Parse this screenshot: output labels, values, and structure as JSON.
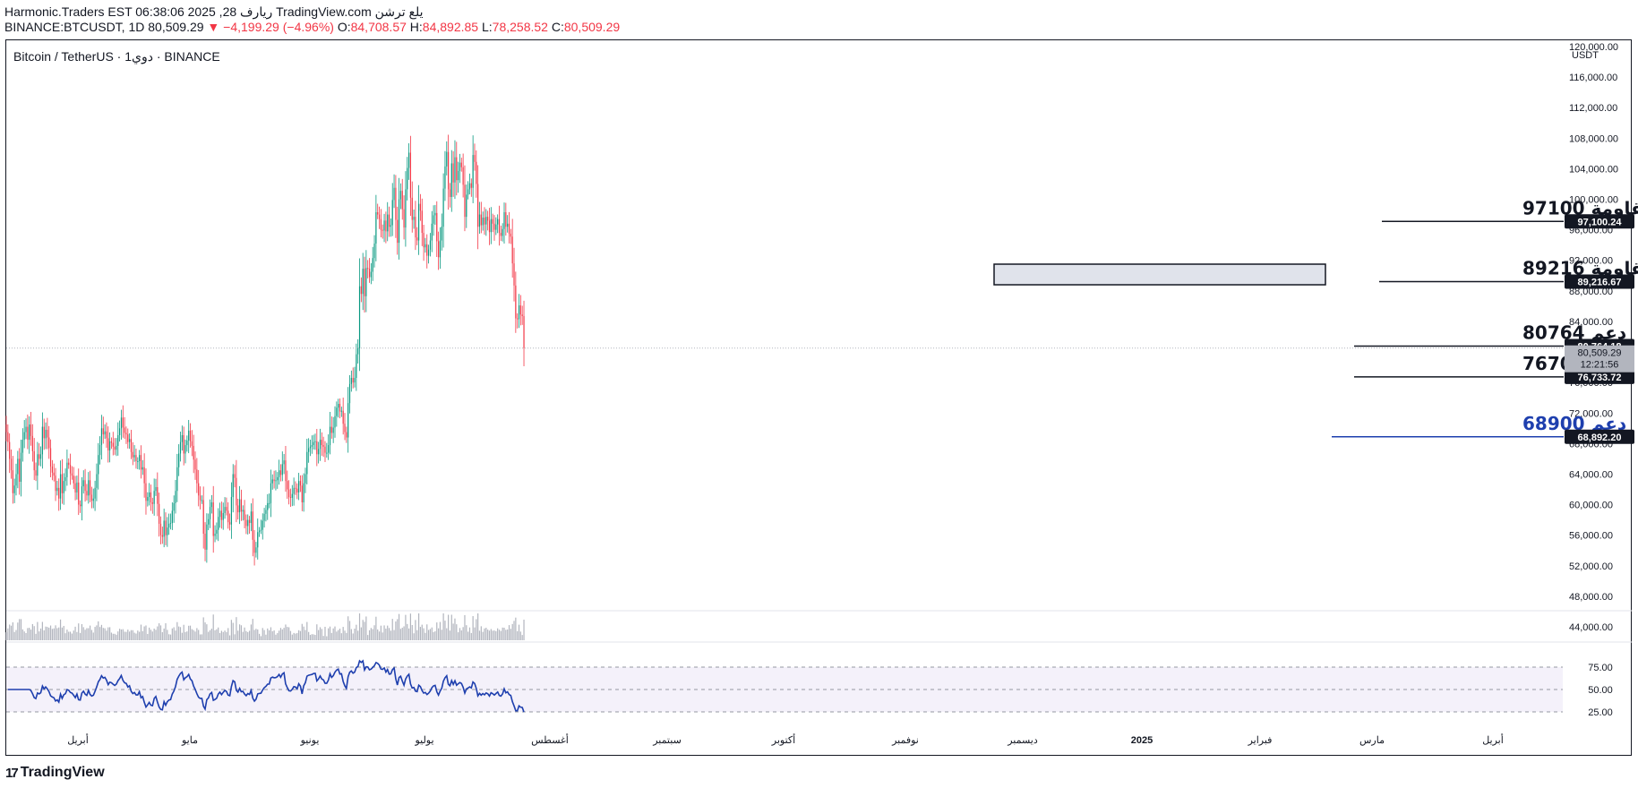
{
  "header": {
    "line1": "Harmonic.Traders EST 06:38:06 2025 ,28 ريارف TradingView.com يلع ترشن",
    "symbol_line": "BINANCE:BTCUSDT, 1D 80,509.29",
    "change": "▼ −4,199.29 (−4.96%)",
    "o_label": "O:",
    "o_value": "84,708.57",
    "h_label": "H:",
    "h_value": "84,892.85",
    "l_label": "L:",
    "l_value": "78,258.52",
    "c_label": "C:",
    "c_value": "80,509.29"
  },
  "chart_title": "Bitcoin / TetherUS · 1دوي · BINANCE",
  "price_unit": "USDT",
  "footer_logo": "TradingView",
  "colors": {
    "up": "#089981",
    "down": "#f23645",
    "rsi": "#1e3fae",
    "annotation": "#131722",
    "annotation_blue": "#1e3fae"
  },
  "chart_data": [
    {
      "type": "candlestick",
      "title": "Bitcoin / TetherUS",
      "ylim": [
        44000,
        120000
      ],
      "y_ticks": [
        44000,
        48000,
        52000,
        56000,
        60000,
        64000,
        68000,
        72000,
        76000,
        80000,
        84000,
        88000,
        92000,
        96000,
        100000,
        104000,
        108000,
        112000,
        116000,
        120000
      ],
      "y_tick_labels": [
        "44,000.00",
        "48,000.00",
        "52,000.00",
        "56,000.00",
        "60,000.00",
        "64,000.00",
        "68,000.00",
        "72,000.00",
        "76,000.00",
        "80,000.00",
        "84,000.00",
        "88,000.00",
        "92,000.00",
        "96,000.00",
        "100,000.00",
        "104,000.00",
        "108,000.00",
        "112,000.00",
        "116,000.00",
        "120,000.00"
      ],
      "x_labels": [
        "أبريل",
        "مايو",
        "يونيو",
        "يوليو",
        "أغسطس",
        "سبتمبر",
        "أكتوبر",
        "نوفمبر",
        "ديسمبر",
        "2025",
        "فبراير",
        "مارس",
        "أبريل"
      ],
      "x_label_bold": "2025",
      "series_closes": [
        69500,
        68200,
        66000,
        64500,
        61500,
        62500,
        64000,
        66000,
        63000,
        66800,
        68500,
        69500,
        70200,
        68500,
        70500,
        69000,
        67000,
        64500,
        63800,
        66600,
        66000,
        66600,
        70200,
        68700,
        69800,
        68800,
        67400,
        65000,
        64200,
        63800,
        61800,
        62200,
        60800,
        64000,
        61500,
        63100,
        63600,
        65500,
        65200,
        64100,
        63800,
        62800,
        61600,
        62900,
        60000,
        59800,
        62400,
        63200,
        61800,
        61200,
        63200,
        61300,
        60500,
        60800,
        62200,
        64000,
        66500,
        67800,
        70000,
        69200,
        69600,
        68700,
        67100,
        68300,
        68100,
        67600,
        67200,
        67700,
        69100,
        70000,
        71400,
        70100,
        69400,
        69200,
        68200,
        68600,
        66900,
        66200,
        66500,
        65700,
        65700,
        66500,
        64600,
        64900,
        62800,
        60500,
        61000,
        61600,
        60300,
        60100,
        61800,
        62300,
        60100,
        57500,
        56000,
        55800,
        57900,
        56000,
        57000,
        57500,
        57600,
        59200,
        60200,
        61800,
        64900,
        66700,
        68200,
        69100,
        66700,
        67800,
        68400,
        69700,
        68300,
        67700,
        65900,
        64600,
        62800,
        61200,
        60600,
        60600,
        56200,
        54100,
        57400,
        58100,
        59700,
        60300,
        55900,
        56200,
        56700,
        58400,
        59200,
        58000,
        58900,
        59700,
        59200,
        57700,
        57400,
        61000,
        64000,
        63500,
        59900,
        59000,
        60700,
        59100,
        59300,
        58000,
        57200,
        58000,
        57600,
        59100,
        55400,
        53700,
        54400,
        56400,
        56600,
        56700,
        57900,
        58800,
        59300,
        60200,
        60200,
        62800,
        63300,
        63100,
        63200,
        63600,
        64500,
        63900,
        65300,
        65800,
        63100,
        62000,
        61000,
        60900,
        61400,
        62200,
        62100,
        61600,
        63100,
        62500,
        60300,
        62800,
        64000,
        66900,
        67400,
        67600,
        67800,
        68200,
        68300,
        66600,
        67300,
        68500,
        67800,
        67600,
        66800,
        66800,
        67800,
        70200,
        69400,
        70100,
        71600,
        72700,
        73200,
        72200,
        72300,
        70600,
        69500,
        68800,
        73300,
        75800,
        76600,
        76000,
        76600,
        79700,
        80500,
        88600,
        87600,
        90900,
        87300,
        91000,
        90900,
        89800,
        90500,
        92300,
        94200,
        98300,
        98000,
        97400,
        96000,
        95900,
        97200,
        95800,
        98000,
        96400,
        96600,
        99900,
        101500,
        97300,
        94300,
        100000,
        101100,
        98700,
        96300,
        101300,
        104100,
        106100,
        100200,
        97300,
        97700,
        95000,
        94600,
        99400,
        98500,
        95600,
        93700,
        94100,
        92600,
        93400,
        94600,
        96800,
        97900,
        98200,
        94500,
        92400,
        94600,
        96400,
        101400,
        104300,
        106200,
        101300,
        100300,
        104700,
        102200,
        105500,
        102500,
        103700,
        104800,
        104200,
        101900,
        97700,
        100600,
        101300,
        102100,
        101500,
        105800,
        104900,
        102000,
        96400,
        98000,
        96600,
        97600,
        96700,
        97700,
        97200,
        95700,
        97400,
        96800,
        96000,
        96700,
        97400,
        95600,
        95200,
        96100,
        98300,
        96400,
        96800,
        95500,
        95100,
        91600,
        88700,
        84400,
        84300,
        86100,
        84900,
        84700,
        80500
      ]
    },
    {
      "type": "bar",
      "title": "Volume"
    },
    {
      "type": "line",
      "title": "RSI",
      "ylim": [
        25,
        75
      ],
      "y_ticks": [
        75,
        50,
        25
      ],
      "y_tick_labels": [
        "75.00",
        "50.00",
        "25.00"
      ]
    }
  ],
  "levels": [
    {
      "label": "مقاومة 97100",
      "value": 97100.24,
      "tag": "97,100.24",
      "color": "#131722"
    },
    {
      "label": "مقاومة 89216",
      "value": 89216.67,
      "tag": "89,216.67",
      "color": "#131722"
    },
    {
      "label": "دعم 80764",
      "value": 80764.18,
      "tag": "80,764.18",
      "color": "#131722"
    },
    {
      "label": "دعم 76700",
      "value": 76733.72,
      "tag": "76,733.72",
      "color": "#131722"
    },
    {
      "label": "دعم 68900",
      "value": 68892.2,
      "tag": "68,892.20",
      "color": "#1e3fae"
    }
  ],
  "last_price": {
    "value": 80509.29,
    "tag": "80,509.29",
    "countdown": "12:21:56"
  },
  "support_zone": {
    "low": 88800,
    "high": 91500
  }
}
